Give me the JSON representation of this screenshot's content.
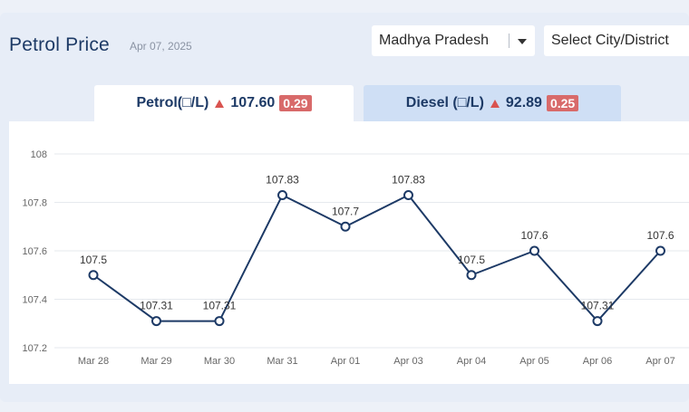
{
  "header": {
    "title": "Petrol Price",
    "date": "Apr 07, 2025"
  },
  "filters": {
    "state": "Madhya Pradesh",
    "city": "Select City/District"
  },
  "tabs": [
    {
      "label": "Petrol(□/L)",
      "price": "107.60",
      "change": "0.29"
    },
    {
      "label": "Diesel (□/L)",
      "price": "92.89",
      "change": "0.25"
    }
  ],
  "colors": {
    "line": "#1d3a66",
    "up_arrow": "#d9534f",
    "badge": "#d86a6a"
  },
  "chart_data": {
    "type": "line",
    "categories": [
      "Mar 28",
      "Mar 29",
      "Mar 30",
      "Mar 31",
      "Apr 01",
      "Apr 03",
      "Apr 04",
      "Apr 05",
      "Apr 06",
      "Apr 07"
    ],
    "values": [
      107.5,
      107.31,
      107.31,
      107.83,
      107.7,
      107.83,
      107.5,
      107.6,
      107.31,
      107.6
    ],
    "data_labels": [
      "107.5",
      "107.31",
      "107.31",
      "107.83",
      "107.7",
      "107.83",
      "107.5",
      "107.6",
      "107.31",
      "107.6"
    ],
    "ylim": [
      107.2,
      108
    ],
    "yticks": [
      "107.2",
      "107.4",
      "107.6",
      "107.8",
      "108"
    ],
    "grid": true,
    "legend": "none"
  }
}
